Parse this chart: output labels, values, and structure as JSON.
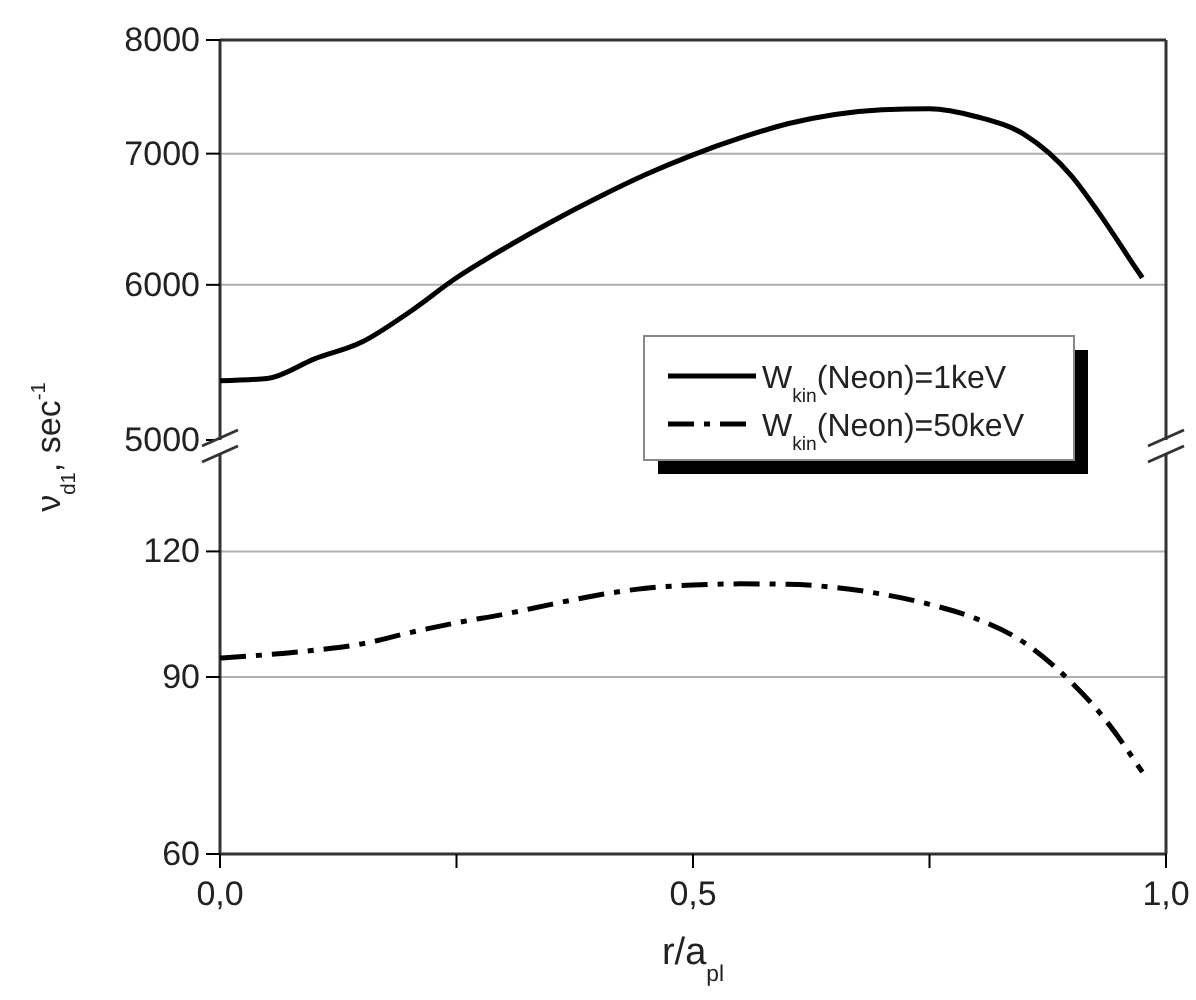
{
  "chart_data": [
    {
      "type": "line",
      "ylabel": "ν$_{d1}$, sec$^{-1}$",
      "xlim": [
        0,
        1
      ],
      "ylim": [
        5000,
        8000
      ],
      "yticks": [
        5000,
        6000,
        7000,
        8000
      ],
      "log": "y",
      "grid": "y",
      "tick_labels": "y",
      "legend": "bottom right",
      "line_style": "solid",
      "x": [
        0,
        0.05,
        0.1,
        0.15,
        0.2,
        0.25,
        0.3,
        0.35,
        0.4,
        0.45,
        0.5,
        0.55,
        0.6,
        0.65,
        0.7,
        0.75,
        0.8,
        0.85,
        0.9,
        0.93,
        0.965,
        0.975
      ],
      "series": [
        {
          "name": "W$_{kin}$(Neon)=1keV",
          "color": "#000000",
          "values": [
            5360,
            5375,
            5500,
            5610,
            5810,
            6050,
            6260,
            6460,
            6650,
            6830,
            6990,
            7130,
            7250,
            7330,
            7370,
            7380,
            7310,
            7160,
            6820,
            6520,
            6150,
            6050
          ]
        }
      ]
    },
    {
      "type": "line",
      "xlabel": "r/a$_{pl}$",
      "xlim": [
        0,
        1
      ],
      "xticks": [
        {
          "value": 0,
          "label": "0,0"
        },
        {
          "value": 0.25,
          "label": null
        },
        {
          "value": 0.5,
          "label": "0,5"
        },
        {
          "value": 0.75,
          "label": null
        },
        {
          "value": 1,
          "label": "1,0"
        }
      ],
      "ylim": [
        60,
        150
      ],
      "yticks": [
        60,
        90,
        120
      ],
      "log": "y",
      "grid": "y",
      "legend": "top right",
      "line_style": "dashed",
      "x": [
        0,
        0.1,
        0.15,
        0.2,
        0.25,
        0.3,
        0.35,
        0.4,
        0.45,
        0.5,
        0.55,
        0.6,
        0.65,
        0.7,
        0.75,
        0.8,
        0.85,
        0.9,
        0.93,
        0.975
      ],
      "series": [
        {
          "name": "W$_{kin}$(Neon)=50keV",
          "color": "#000000",
          "values": [
            94,
            95.7,
            97.1,
            99.6,
            101.9,
            103.9,
            106.3,
            108.6,
            110.3,
            111.1,
            111.4,
            111.3,
            110.5,
            108.8,
            106.3,
            102.8,
            97.4,
            88.9,
            82.9,
            72.4
          ]
        }
      ]
    }
  ]
}
